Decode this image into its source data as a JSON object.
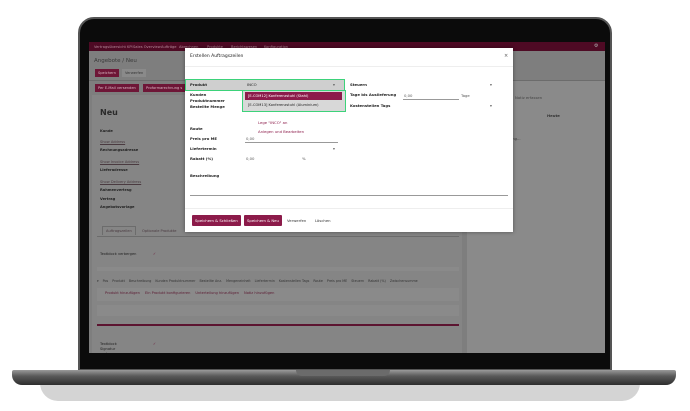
{
  "nav": {
    "items": [
      "Vertragsübersicht KPI",
      "Sales Overview",
      "Aufträge",
      "Abrechnen",
      "Produkte",
      "Berichtswesen",
      "Konfiguration"
    ]
  },
  "page": {
    "breadcrumb": "Angebote / Neu",
    "save": "Speichern",
    "discard": "Verwerfen",
    "email": "Per E-Mail versenden",
    "proforma": "Proformarechnung s",
    "title": "Neu",
    "fields": {
      "kunde": "Kunde",
      "show_address": "Show Address",
      "rechnungsadresse": "Rechnungsadresse",
      "show_invoice": "Show Invoice Address",
      "lieferadresse": "Lieferadresse",
      "show_delivery": "Show Delivery Address",
      "rahmenvertrag": "Rahmenvertrag",
      "vertrag": "Vertrag",
      "angebotsvorlage": "Angebotsvorlage"
    },
    "tabs": [
      "Auftragszeilen",
      "Optionale Produkte"
    ],
    "textblock_hide": "Textblock verbergen",
    "columns": [
      "Pos",
      "Produkt",
      "Beschreibung",
      "Kunden Produktnummer",
      "Bestellte Anz.",
      "Mengeneinheit",
      "Liefertermin",
      "Kostenstellen Tags",
      "Route",
      "Preis pro ME",
      "Steuern",
      "Rabatt (%)",
      "Zwischensumme"
    ],
    "add_links": [
      "Produkt hinzufügen",
      "Ein Produkt konfigurieren",
      "Unterteilung hinzufügen",
      "Notiz hinzufügen"
    ],
    "signature_hide": "Textblock Signatur verbergen"
  },
  "chatter": {
    "btn1": "Nachricht senden",
    "btn2": "Notiz erfassen",
    "today": "Heute",
    "note": "Admin  - vor 1 Minute",
    "record": "Eine neue Aufzeichnung..."
  },
  "modal": {
    "title": "Erstellen Auftragszeilen",
    "close": "×",
    "produkt_label": "Produkt",
    "produkt_value": "INCO",
    "dropdown": [
      "[E-COM12] Konferenzstuhl (Stahl)",
      "[E-COM13] Konferenzstuhl (Aluminium)"
    ],
    "create_label": "Lege \"INCO\" an",
    "create_edit": "Anlegen und Bearbeiten",
    "kunden": "Kunden",
    "produktnummer": "Produktnummer",
    "bestellte_menge": "Bestellte Menge",
    "route": "Route",
    "preis_label": "Preis pro ME",
    "preis_value": "0,00",
    "liefertermin": "Liefertermin",
    "rabatt_label": "Rabatt (%)",
    "rabatt_value": "0,00",
    "rabatt_unit": "%",
    "beschreibung": "Beschreibung",
    "steuern": "Steuern",
    "tage_label": "Tage bis Auslieferung",
    "tage_value": "0,00",
    "tage_unit": "Tage",
    "kostenstellen": "Kostenstellen Tags",
    "save_close": "Speichern & Schließen",
    "save_new": "Speichern & Neu",
    "discard": "Verwerfen",
    "delete": "Löschen"
  },
  "colors": {
    "accent": "#8c1b4a",
    "highlight": "#3dd27a"
  }
}
